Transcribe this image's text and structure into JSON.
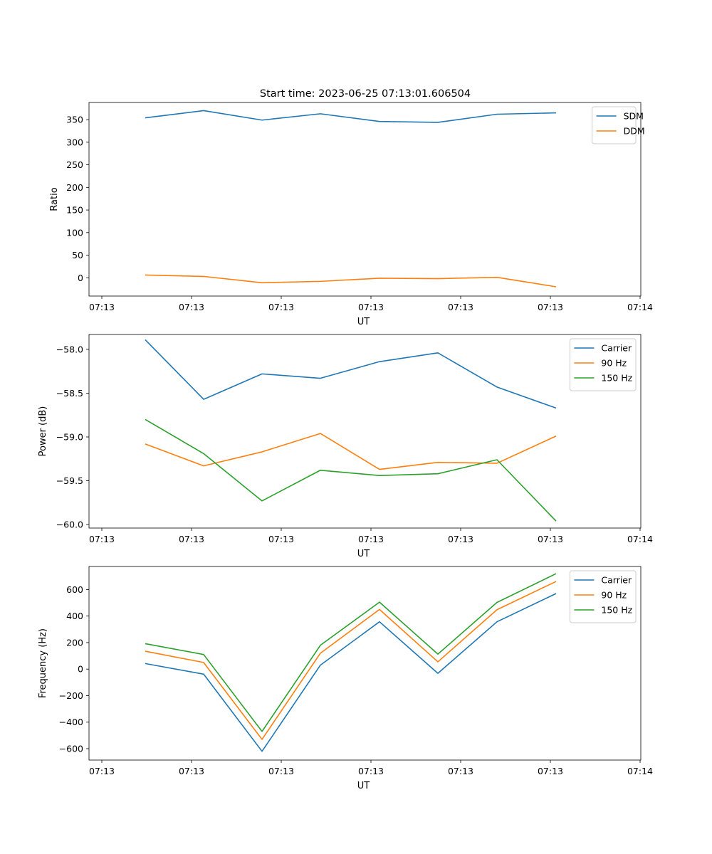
{
  "title": "Start time: 2023-06-25 07:13:01.606504",
  "colors": {
    "c1": "#1f77b4",
    "c2": "#ff7f0e",
    "c3": "#2ca02c"
  },
  "chart_data": [
    {
      "type": "line",
      "title": "Start time: 2023-06-25 07:13:01.606504",
      "xlabel": "UT",
      "ylabel": "Ratio",
      "x_tick_labels": [
        "07:13",
        "07:13",
        "07:13",
        "07:13",
        "07:13",
        "07:13",
        "07:14"
      ],
      "y_ticks": [
        0,
        50,
        100,
        150,
        200,
        250,
        300,
        350
      ],
      "ylim": [
        -40.5,
        388
      ],
      "x": [
        0.484,
        0.81,
        1.138,
        1.465,
        1.79,
        2.116,
        2.444,
        2.77
      ],
      "xlim": [
        0,
        3.0
      ],
      "legend": "upper right",
      "series": [
        {
          "name": "SDM",
          "color": "#1f77b4",
          "values": [
            354,
            370,
            349,
            363,
            346,
            344,
            362,
            365
          ]
        },
        {
          "name": "DDM",
          "color": "#ff7f0e",
          "values": [
            6,
            3,
            -11,
            -8,
            -1,
            -2,
            1,
            -20
          ]
        }
      ]
    },
    {
      "type": "line",
      "xlabel": "UT",
      "ylabel": "Power (dB)",
      "x_tick_labels": [
        "07:13",
        "07:13",
        "07:13",
        "07:13",
        "07:13",
        "07:13",
        "07:14"
      ],
      "y_ticks": [
        -60.0,
        -59.5,
        -59.0,
        -58.5,
        -58.0
      ],
      "y_tick_labels": [
        "−60.0",
        "−59.5",
        "−59.0",
        "−58.5",
        "−58.0"
      ],
      "ylim": [
        -60.04,
        -57.83
      ],
      "x": [
        0.484,
        0.81,
        1.138,
        1.465,
        1.79,
        2.116,
        2.444,
        2.77
      ],
      "xlim": [
        0,
        3.0
      ],
      "legend": "upper right",
      "series": [
        {
          "name": "Carrier",
          "color": "#1f77b4",
          "values": [
            -57.89,
            -58.57,
            -58.28,
            -58.33,
            -58.14,
            -58.04,
            -58.43,
            -58.67
          ]
        },
        {
          "name": "90 Hz",
          "color": "#ff7f0e",
          "values": [
            -59.08,
            -59.33,
            -59.17,
            -58.96,
            -59.37,
            -59.29,
            -59.3,
            -58.99
          ]
        },
        {
          "name": "150 Hz",
          "color": "#2ca02c",
          "values": [
            -58.8,
            -59.19,
            -59.73,
            -59.38,
            -59.44,
            -59.42,
            -59.26,
            -59.96
          ]
        }
      ]
    },
    {
      "type": "line",
      "xlabel": "UT",
      "ylabel": "Frequency (Hz)",
      "x_tick_labels": [
        "07:13",
        "07:13",
        "07:13",
        "07:13",
        "07:13",
        "07:13",
        "07:14"
      ],
      "y_ticks": [
        -600,
        -400,
        -200,
        0,
        200,
        400,
        600
      ],
      "y_tick_labels": [
        "−600",
        "−400",
        "−200",
        "0",
        "200",
        "400",
        "600"
      ],
      "ylim": [
        -686,
        774
      ],
      "x": [
        0.484,
        0.81,
        1.138,
        1.465,
        1.79,
        2.116,
        2.444,
        2.77
      ],
      "xlim": [
        0,
        3.0
      ],
      "legend": "upper right",
      "series": [
        {
          "name": "Carrier",
          "color": "#1f77b4",
          "values": [
            42,
            -38,
            -620,
            30,
            357,
            -32,
            357,
            570
          ]
        },
        {
          "name": "90 Hz",
          "color": "#ff7f0e",
          "values": [
            135,
            50,
            -530,
            120,
            450,
            55,
            448,
            661
          ]
        },
        {
          "name": "150 Hz",
          "color": "#2ca02c",
          "values": [
            192,
            110,
            -470,
            180,
            505,
            113,
            503,
            720
          ]
        }
      ]
    }
  ]
}
